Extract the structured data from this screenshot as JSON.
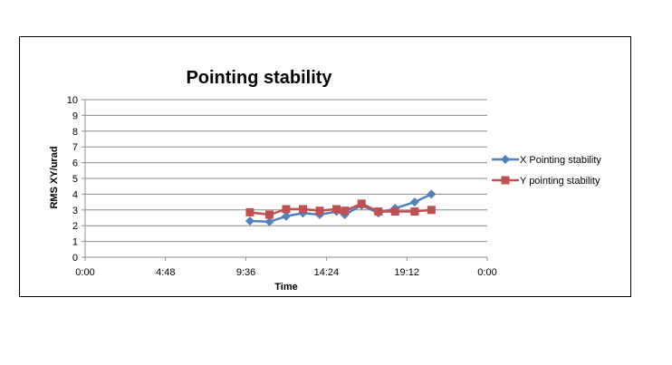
{
  "chart_data": {
    "type": "line",
    "title": "Pointing stability",
    "xlabel": "Time",
    "ylabel": "RMS XY/urad",
    "ylim": [
      0,
      10
    ],
    "y_ticks": [
      "0",
      "1",
      "2",
      "3",
      "4",
      "5",
      "6",
      "7",
      "8",
      "9",
      "10"
    ],
    "xlim": [
      "0:00",
      "24:00"
    ],
    "x_ticks": [
      "0:00",
      "4:48",
      "9:36",
      "14:24",
      "19:12",
      "0:00"
    ],
    "grid": "horizontal",
    "legend": "right",
    "series": [
      {
        "name": "X Pointing stability",
        "color": "#4f81bd",
        "marker": "diamond",
        "x": [
          "9:50",
          "11:00",
          "12:00",
          "13:00",
          "14:00",
          "15:00",
          "15:30",
          "16:30",
          "17:30",
          "18:30",
          "19:40",
          "20:40"
        ],
        "y": [
          2.3,
          2.25,
          2.6,
          2.8,
          2.7,
          2.9,
          2.7,
          3.3,
          2.8,
          3.1,
          3.5,
          4.0
        ]
      },
      {
        "name": "Y pointing stability",
        "color": "#c0504d",
        "marker": "square",
        "x": [
          "9:50",
          "11:00",
          "12:00",
          "13:00",
          "14:00",
          "15:00",
          "15:30",
          "16:30",
          "17:30",
          "18:30",
          "19:40",
          "20:40"
        ],
        "y": [
          2.85,
          2.7,
          3.05,
          3.05,
          2.95,
          3.05,
          2.95,
          3.4,
          2.9,
          2.9,
          2.9,
          3.0
        ]
      }
    ]
  }
}
